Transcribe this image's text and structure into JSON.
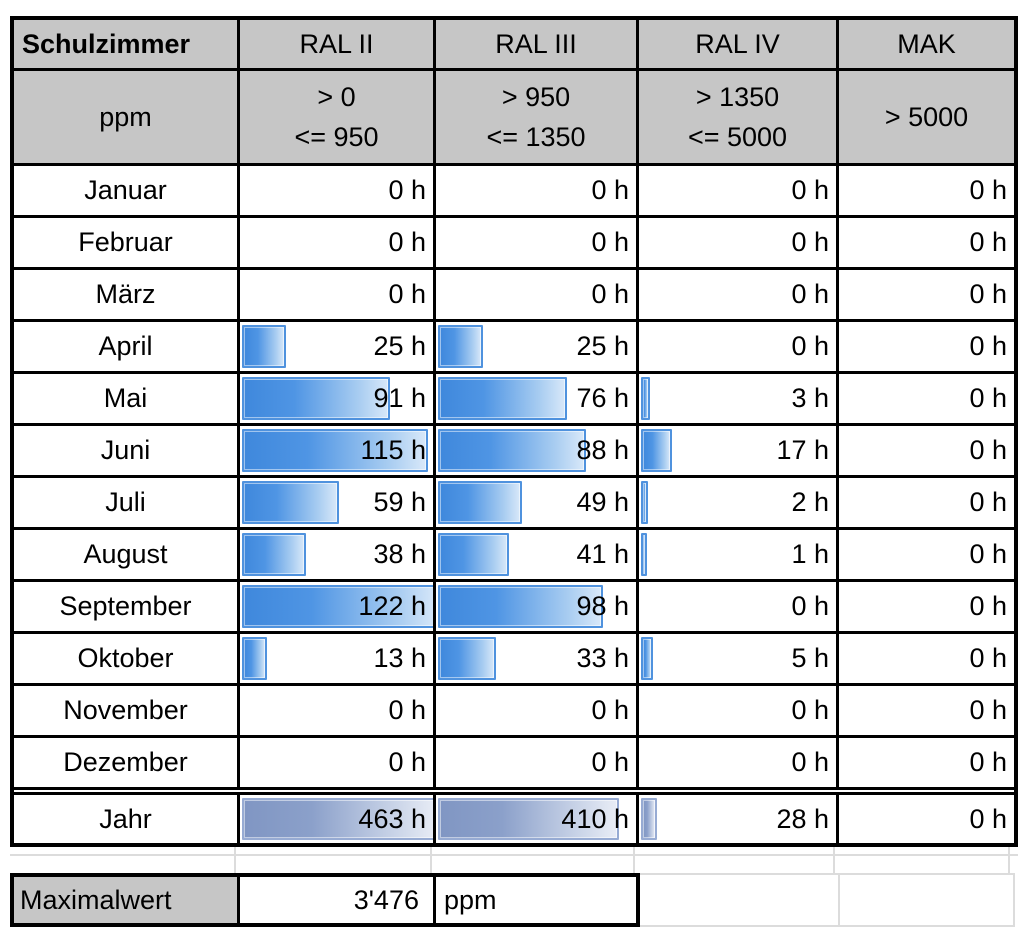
{
  "table": {
    "corner_label": "Schulzimmer",
    "unit_label": "ppm",
    "columns": [
      {
        "label": "RAL II",
        "range": [
          "> 0",
          "<= 950"
        ]
      },
      {
        "label": "RAL III",
        "range": [
          "> 950",
          "<= 1350"
        ]
      },
      {
        "label": "RAL IV",
        "range": [
          "> 1350",
          "<= 5000"
        ]
      },
      {
        "label": "MAK",
        "range": [
          "> 5000"
        ]
      }
    ],
    "bar_max_months": 122,
    "bar_max_year": 463,
    "rows": [
      {
        "label": "Januar",
        "values": [
          0,
          0,
          0,
          0
        ],
        "display": [
          "0 h",
          "0 h",
          "0 h",
          "0 h"
        ]
      },
      {
        "label": "Februar",
        "values": [
          0,
          0,
          0,
          0
        ],
        "display": [
          "0 h",
          "0 h",
          "0 h",
          "0 h"
        ]
      },
      {
        "label": "März",
        "values": [
          0,
          0,
          0,
          0
        ],
        "display": [
          "0 h",
          "0 h",
          "0 h",
          "0 h"
        ]
      },
      {
        "label": "April",
        "values": [
          25,
          25,
          0,
          0
        ],
        "display": [
          "25 h",
          "25 h",
          "0 h",
          "0 h"
        ]
      },
      {
        "label": "Mai",
        "values": [
          91,
          76,
          3,
          0
        ],
        "display": [
          "91 h",
          "76 h",
          "3 h",
          "0 h"
        ]
      },
      {
        "label": "Juni",
        "values": [
          115,
          88,
          17,
          0
        ],
        "display": [
          "115 h",
          "88 h",
          "17 h",
          "0 h"
        ]
      },
      {
        "label": "Juli",
        "values": [
          59,
          49,
          2,
          0
        ],
        "display": [
          "59 h",
          "49 h",
          "2 h",
          "0 h"
        ]
      },
      {
        "label": "August",
        "values": [
          38,
          41,
          1,
          0
        ],
        "display": [
          "38 h",
          "41 h",
          "1 h",
          "0 h"
        ]
      },
      {
        "label": "September",
        "values": [
          122,
          98,
          0,
          0
        ],
        "display": [
          "122 h",
          "98 h",
          "0 h",
          "0 h"
        ]
      },
      {
        "label": "Oktober",
        "values": [
          13,
          33,
          5,
          0
        ],
        "display": [
          "13 h",
          "33 h",
          "5 h",
          "0 h"
        ]
      },
      {
        "label": "November",
        "values": [
          0,
          0,
          0,
          0
        ],
        "display": [
          "0 h",
          "0 h",
          "0 h",
          "0 h"
        ]
      },
      {
        "label": "Dezember",
        "values": [
          0,
          0,
          0,
          0
        ],
        "display": [
          "0 h",
          "0 h",
          "0 h",
          "0 h"
        ]
      }
    ],
    "year_row": {
      "label": "Jahr",
      "values": [
        463,
        410,
        28,
        0
      ],
      "display": [
        "463 h",
        "410 h",
        "28 h",
        "0 h"
      ]
    }
  },
  "footer": {
    "label": "Maximalwert",
    "value": "3'476",
    "unit": "ppm"
  },
  "colors": {
    "header_fill": "#c6c6c6",
    "bar_month_start": "#3f88dc",
    "bar_month_end": "#d8e8f9",
    "bar_month_border": "#4f92de",
    "bar_year_start": "#8096c3",
    "bar_year_end": "#e9edf6",
    "bar_year_border": "#97abd3",
    "table_border": "#000000",
    "faint_gridline": "#dcdcdc"
  },
  "chart_data": {
    "type": "bar",
    "title": "Schulzimmer",
    "unit": "h",
    "categories": [
      "Januar",
      "Februar",
      "März",
      "April",
      "Mai",
      "Juni",
      "Juli",
      "August",
      "September",
      "Oktober",
      "November",
      "Dezember"
    ],
    "series": [
      {
        "name": "RAL II > 0 <= 950",
        "values": [
          0,
          0,
          0,
          25,
          91,
          115,
          59,
          38,
          122,
          13,
          0,
          0
        ],
        "year_total": 463
      },
      {
        "name": "RAL III > 950 <= 1350",
        "values": [
          0,
          0,
          0,
          25,
          76,
          88,
          49,
          41,
          98,
          33,
          0,
          0
        ],
        "year_total": 410
      },
      {
        "name": "RAL IV > 1350 <= 5000",
        "values": [
          0,
          0,
          0,
          0,
          3,
          17,
          2,
          1,
          0,
          5,
          0,
          0
        ],
        "year_total": 28
      },
      {
        "name": "MAK > 5000",
        "values": [
          0,
          0,
          0,
          0,
          0,
          0,
          0,
          0,
          0,
          0,
          0,
          0
        ],
        "year_total": 0
      }
    ],
    "bar_scale_max_months": 122,
    "bar_scale_max_year": 463,
    "maximalwert_ppm": "3'476"
  }
}
